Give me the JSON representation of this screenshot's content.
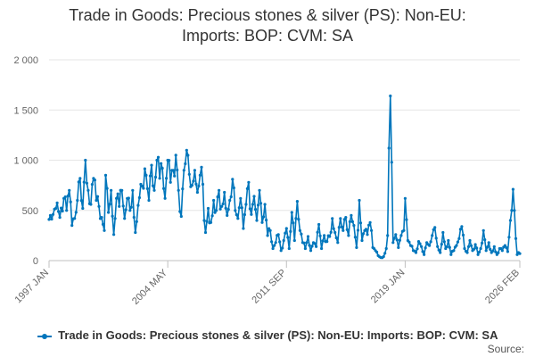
{
  "chart_data": {
    "type": "line",
    "title_lines": [
      "Trade in Goods: Precious stones & silver (PS): Non-EU:",
      "Imports: BOP: CVM: SA"
    ],
    "xlabel": "",
    "ylabel": "",
    "ylim": [
      0,
      2000
    ],
    "y_ticks": [
      0,
      500,
      1000,
      1500,
      2000
    ],
    "y_tick_labels": [
      "0",
      "500",
      "1 000",
      "1 500",
      "2 000"
    ],
    "x_start": "1997 JAN",
    "x_end": "2026 FEB",
    "x_ticks": [
      {
        "label": "1997 JAN",
        "index": 0
      },
      {
        "label": "2004 MAY",
        "index": 88
      },
      {
        "label": "2011 SEP",
        "index": 176
      },
      {
        "label": "2019 JAN",
        "index": 264
      },
      {
        "label": "2026 FEB",
        "index": 349
      }
    ],
    "series": [
      {
        "name": "Trade in Goods: Precious stones & silver (PS): Non-EU: Imports: BOP: CVM: SA",
        "color": "#0076bc",
        "anchors": [
          [
            0,
            410
          ],
          [
            3,
            460
          ],
          [
            5,
            520
          ],
          [
            8,
            430
          ],
          [
            11,
            620
          ],
          [
            13,
            500
          ],
          [
            15,
            700
          ],
          [
            17,
            350
          ],
          [
            19,
            420
          ],
          [
            21,
            600
          ],
          [
            23,
            820
          ],
          [
            25,
            520
          ],
          [
            27,
            1000
          ],
          [
            29,
            700
          ],
          [
            31,
            560
          ],
          [
            33,
            820
          ],
          [
            35,
            600
          ],
          [
            37,
            540
          ],
          [
            39,
            430
          ],
          [
            41,
            300
          ],
          [
            42,
            850
          ],
          [
            44,
            480
          ],
          [
            46,
            700
          ],
          [
            48,
            260
          ],
          [
            50,
            620
          ],
          [
            52,
            540
          ],
          [
            54,
            700
          ],
          [
            56,
            420
          ],
          [
            58,
            620
          ],
          [
            60,
            500
          ],
          [
            62,
            700
          ],
          [
            64,
            280
          ],
          [
            66,
            550
          ],
          [
            68,
            760
          ],
          [
            70,
            720
          ],
          [
            72,
            850
          ],
          [
            74,
            600
          ],
          [
            76,
            950
          ],
          [
            78,
            700
          ],
          [
            80,
            1000
          ],
          [
            82,
            820
          ],
          [
            84,
            920
          ],
          [
            86,
            620
          ],
          [
            88,
            1000
          ],
          [
            90,
            780
          ],
          [
            92,
            900
          ],
          [
            94,
            1050
          ],
          [
            96,
            700
          ],
          [
            98,
            440
          ],
          [
            100,
            900
          ],
          [
            102,
            1100
          ],
          [
            104,
            860
          ],
          [
            106,
            750
          ],
          [
            108,
            900
          ],
          [
            110,
            680
          ],
          [
            112,
            850
          ],
          [
            114,
            760
          ],
          [
            115,
            400
          ],
          [
            116,
            280
          ],
          [
            118,
            520
          ],
          [
            120,
            380
          ],
          [
            122,
            600
          ],
          [
            124,
            500
          ],
          [
            126,
            700
          ],
          [
            128,
            540
          ],
          [
            130,
            680
          ],
          [
            132,
            450
          ],
          [
            134,
            600
          ],
          [
            136,
            810
          ],
          [
            138,
            500
          ],
          [
            140,
            420
          ],
          [
            142,
            620
          ],
          [
            144,
            320
          ],
          [
            146,
            560
          ],
          [
            148,
            780
          ],
          [
            150,
            460
          ],
          [
            152,
            640
          ],
          [
            154,
            400
          ],
          [
            156,
            700
          ],
          [
            158,
            380
          ],
          [
            160,
            560
          ],
          [
            162,
            250
          ],
          [
            164,
            300
          ],
          [
            166,
            120
          ],
          [
            168,
            180
          ],
          [
            170,
            260
          ],
          [
            172,
            100
          ],
          [
            174,
            200
          ],
          [
            176,
            320
          ],
          [
            178,
            120
          ],
          [
            180,
            480
          ],
          [
            182,
            200
          ],
          [
            184,
            590
          ],
          [
            186,
            300
          ],
          [
            188,
            180
          ],
          [
            190,
            120
          ],
          [
            192,
            240
          ],
          [
            194,
            100
          ],
          [
            196,
            180
          ],
          [
            198,
            140
          ],
          [
            200,
            360
          ],
          [
            202,
            120
          ],
          [
            204,
            250
          ],
          [
            206,
            190
          ],
          [
            208,
            240
          ],
          [
            210,
            420
          ],
          [
            212,
            280
          ],
          [
            214,
            180
          ],
          [
            216,
            420
          ],
          [
            218,
            300
          ],
          [
            220,
            430
          ],
          [
            222,
            250
          ],
          [
            224,
            450
          ],
          [
            226,
            350
          ],
          [
            228,
            130
          ],
          [
            230,
            600
          ],
          [
            232,
            200
          ],
          [
            234,
            300
          ],
          [
            236,
            260
          ],
          [
            238,
            380
          ],
          [
            240,
            130
          ],
          [
            242,
            100
          ],
          [
            244,
            50
          ],
          [
            246,
            30
          ],
          [
            248,
            40
          ],
          [
            250,
            120
          ],
          [
            251,
            250
          ],
          [
            252,
            1120
          ],
          [
            253,
            1640
          ],
          [
            254,
            980
          ],
          [
            255,
            180
          ],
          [
            257,
            260
          ],
          [
            259,
            130
          ],
          [
            261,
            250
          ],
          [
            263,
            300
          ],
          [
            264,
            620
          ],
          [
            266,
            200
          ],
          [
            268,
            150
          ],
          [
            270,
            100
          ],
          [
            272,
            80
          ],
          [
            274,
            190
          ],
          [
            276,
            140
          ],
          [
            278,
            60
          ],
          [
            280,
            180
          ],
          [
            282,
            150
          ],
          [
            284,
            250
          ],
          [
            286,
            330
          ],
          [
            288,
            140
          ],
          [
            290,
            80
          ],
          [
            292,
            280
          ],
          [
            294,
            120
          ],
          [
            296,
            200
          ],
          [
            298,
            60
          ],
          [
            300,
            100
          ],
          [
            302,
            150
          ],
          [
            304,
            220
          ],
          [
            306,
            340
          ],
          [
            308,
            120
          ],
          [
            310,
            80
          ],
          [
            312,
            200
          ],
          [
            314,
            100
          ],
          [
            316,
            160
          ],
          [
            318,
            60
          ],
          [
            320,
            120
          ],
          [
            322,
            300
          ],
          [
            324,
            100
          ],
          [
            326,
            180
          ],
          [
            328,
            80
          ],
          [
            330,
            140
          ],
          [
            332,
            60
          ],
          [
            334,
            120
          ],
          [
            336,
            100
          ],
          [
            338,
            150
          ],
          [
            340,
            90
          ],
          [
            342,
            400
          ],
          [
            344,
            710
          ],
          [
            345,
            500
          ],
          [
            346,
            220
          ],
          [
            347,
            60
          ],
          [
            348,
            80
          ],
          [
            349,
            70
          ]
        ]
      }
    ]
  },
  "legend": {
    "label": "Trade in Goods: Precious stones & silver (PS): Non-EU: Imports: BOP: CVM: SA"
  },
  "source_label": "Source:"
}
